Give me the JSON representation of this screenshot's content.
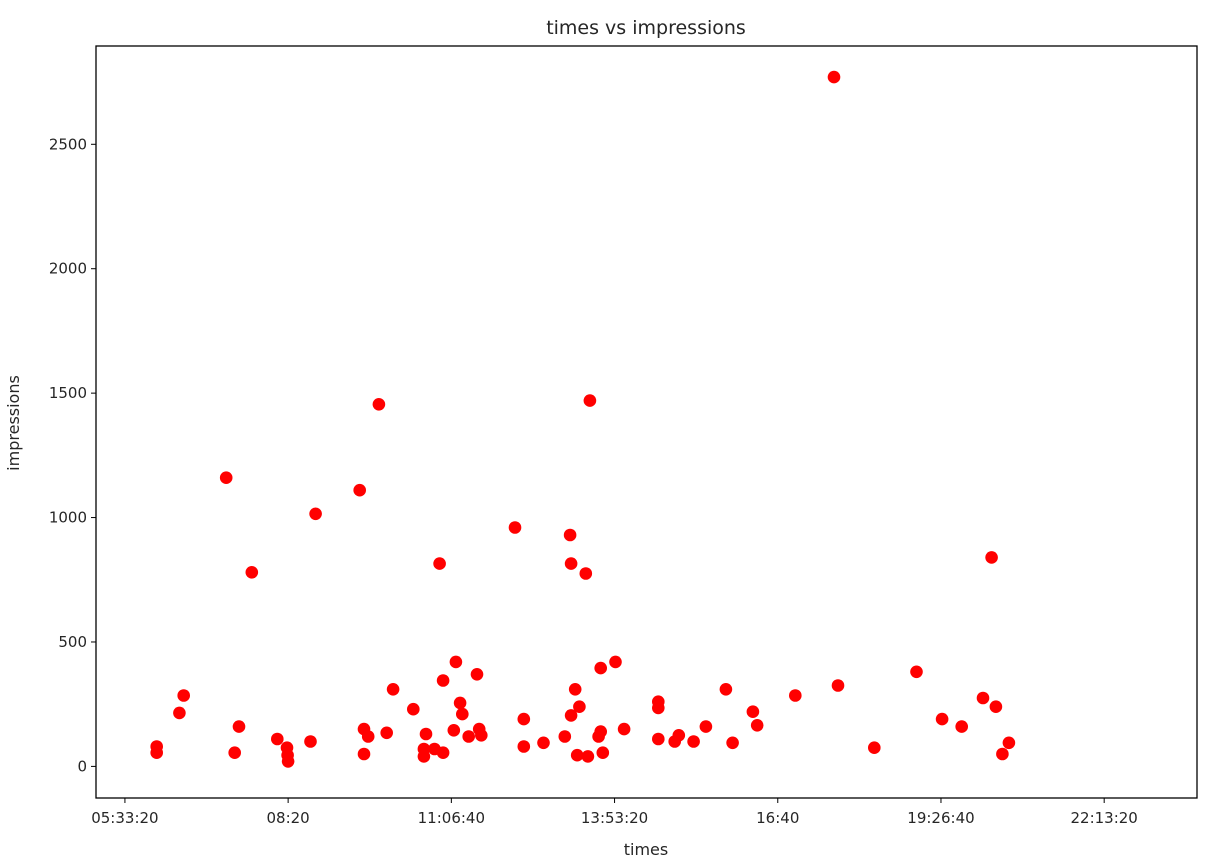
{
  "chart_data": {
    "type": "scatter",
    "title": "times vs impressions",
    "xlabel": "times",
    "ylabel": "impressions",
    "x_tick_values": [
      "05:33:20",
      "08:20:00",
      "11:06:40",
      "13:53:20",
      "16:40:00",
      "19:26:40",
      "22:13:20"
    ],
    "x_tick_labels": [
      "05:33:20",
      "08:20",
      "11:06:40",
      "13:53:20",
      "16:40",
      "19:26:40",
      "22:13:20"
    ],
    "xlim": [
      "05:03:48",
      "23:48:07"
    ],
    "y_ticks": [
      0,
      500,
      1000,
      1500,
      2000,
      2500
    ],
    "ylim": [
      -127,
      2895
    ],
    "grid": false,
    "marker_color": "#ff0000",
    "series": [
      {
        "marker": "circle",
        "color": "#ff0000",
        "points": [
          {
            "x": "06:05:48",
            "y": 55
          },
          {
            "x": "06:05:48",
            "y": 80
          },
          {
            "x": "06:29:00",
            "y": 215
          },
          {
            "x": "06:33:21",
            "y": 285
          },
          {
            "x": "07:16:48",
            "y": 1160
          },
          {
            "x": "07:25:29",
            "y": 55
          },
          {
            "x": "07:29:49",
            "y": 160
          },
          {
            "x": "07:42:54",
            "y": 780
          },
          {
            "x": "08:08:57",
            "y": 110
          },
          {
            "x": "08:18:50",
            "y": 75
          },
          {
            "x": "08:19:30",
            "y": 45
          },
          {
            "x": "08:20:00",
            "y": 20
          },
          {
            "x": "08:42:48",
            "y": 100
          },
          {
            "x": "08:48:00",
            "y": 1015
          },
          {
            "x": "09:33:05",
            "y": 1110
          },
          {
            "x": "09:37:27",
            "y": 50
          },
          {
            "x": "09:37:27",
            "y": 150
          },
          {
            "x": "09:41:48",
            "y": 120
          },
          {
            "x": "09:52:42",
            "y": 1455
          },
          {
            "x": "10:00:40",
            "y": 135
          },
          {
            "x": "10:07:09",
            "y": 310
          },
          {
            "x": "10:27:48",
            "y": 230
          },
          {
            "x": "10:38:41",
            "y": 40
          },
          {
            "x": "10:38:41",
            "y": 70
          },
          {
            "x": "10:40:50",
            "y": 130
          },
          {
            "x": "10:49:31",
            "y": 70
          },
          {
            "x": "10:54:42",
            "y": 815
          },
          {
            "x": "10:58:15",
            "y": 55
          },
          {
            "x": "10:58:15",
            "y": 345
          },
          {
            "x": "11:09:08",
            "y": 145
          },
          {
            "x": "11:11:17",
            "y": 420
          },
          {
            "x": "11:15:39",
            "y": 255
          },
          {
            "x": "11:17:49",
            "y": 210
          },
          {
            "x": "11:24:22",
            "y": 120
          },
          {
            "x": "11:32:55",
            "y": 370
          },
          {
            "x": "11:35:05",
            "y": 150
          },
          {
            "x": "11:37:15",
            "y": 125
          },
          {
            "x": "12:11:42",
            "y": 960
          },
          {
            "x": "12:20:42",
            "y": 80
          },
          {
            "x": "12:20:42",
            "y": 190
          },
          {
            "x": "12:40:48",
            "y": 95
          },
          {
            "x": "13:02:32",
            "y": 120
          },
          {
            "x": "13:07:58",
            "y": 930
          },
          {
            "x": "13:08:56",
            "y": 815
          },
          {
            "x": "13:08:56",
            "y": 205
          },
          {
            "x": "13:13:07",
            "y": 310
          },
          {
            "x": "13:15:13",
            "y": 45
          },
          {
            "x": "13:17:24",
            "y": 240
          },
          {
            "x": "13:24:00",
            "y": 775
          },
          {
            "x": "13:26:04",
            "y": 40
          },
          {
            "x": "13:28:11",
            "y": 1470
          },
          {
            "x": "13:37:02",
            "y": 120
          },
          {
            "x": "13:39:09",
            "y": 140
          },
          {
            "x": "13:39:09",
            "y": 395
          },
          {
            "x": "13:41:18",
            "y": 55
          },
          {
            "x": "13:54:21",
            "y": 420
          },
          {
            "x": "14:03:06",
            "y": 150
          },
          {
            "x": "14:38:01",
            "y": 110
          },
          {
            "x": "14:38:01",
            "y": 235
          },
          {
            "x": "14:38:01",
            "y": 260
          },
          {
            "x": "14:54:48",
            "y": 100
          },
          {
            "x": "14:58:58",
            "y": 125
          },
          {
            "x": "15:14:02",
            "y": 100
          },
          {
            "x": "15:26:36",
            "y": 160
          },
          {
            "x": "15:47:05",
            "y": 310
          },
          {
            "x": "15:53:50",
            "y": 95
          },
          {
            "x": "16:14:36",
            "y": 220
          },
          {
            "x": "16:18:58",
            "y": 165
          },
          {
            "x": "16:57:56",
            "y": 285
          },
          {
            "x": "17:37:24",
            "y": 2770
          },
          {
            "x": "17:41:33",
            "y": 325
          },
          {
            "x": "18:18:34",
            "y": 75
          },
          {
            "x": "19:01:41",
            "y": 380
          },
          {
            "x": "19:27:48",
            "y": 190
          },
          {
            "x": "19:47:53",
            "y": 160
          },
          {
            "x": "20:09:37",
            "y": 275
          },
          {
            "x": "20:18:22",
            "y": 840
          },
          {
            "x": "20:22:45",
            "y": 240
          },
          {
            "x": "20:29:26",
            "y": 50
          },
          {
            "x": "20:35:59",
            "y": 95
          }
        ]
      }
    ]
  }
}
